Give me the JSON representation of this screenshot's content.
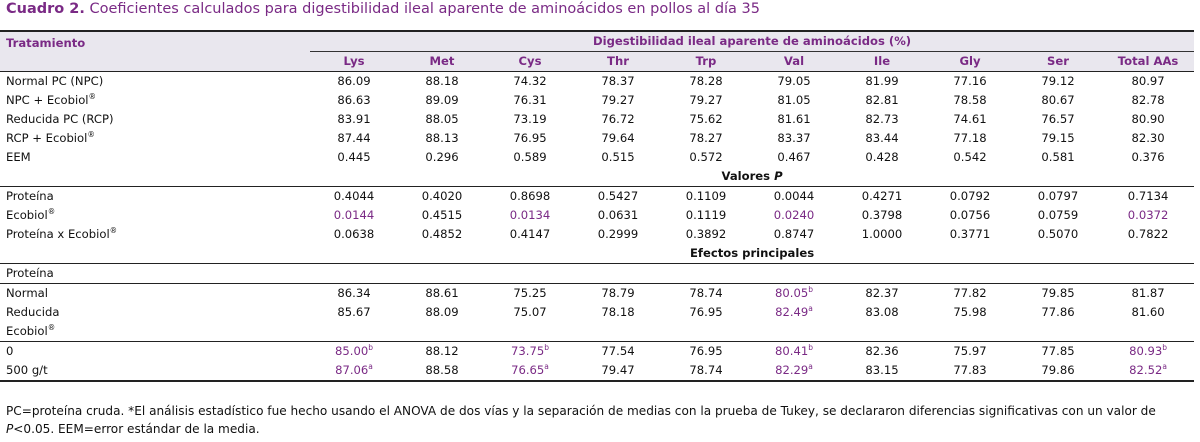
{
  "caption": {
    "label": "Cuadro 2.",
    "text": "Coeficientes calculados para digestibilidad ileal aparente de aminoácidos en pollos al día 35"
  },
  "header": {
    "treatment": "Tratamiento",
    "group": "Digestibilidad ileal aparente de aminoácidos (%)",
    "columns": [
      "Lys",
      "Met",
      "Cys",
      "Thr",
      "Trp",
      "Val",
      "Ile",
      "Gly",
      "Ser",
      "Total AAs"
    ]
  },
  "treatments": [
    {
      "label": "Normal PC (NPC)",
      "values": [
        "86.09",
        "88.18",
        "74.32",
        "78.37",
        "78.28",
        "79.05",
        "81.99",
        "77.16",
        "79.12",
        "80.97"
      ]
    },
    {
      "label": "NPC + Ecobiol",
      "sup": "®",
      "values": [
        "86.63",
        "89.09",
        "76.31",
        "79.27",
        "79.27",
        "81.05",
        "82.81",
        "78.58",
        "80.67",
        "82.78"
      ]
    },
    {
      "label": "Reducida PC (RCP)",
      "values": [
        "83.91",
        "88.05",
        "73.19",
        "76.72",
        "75.62",
        "81.61",
        "82.73",
        "74.61",
        "76.57",
        "80.90"
      ]
    },
    {
      "label": "RCP + Ecobiol",
      "sup": "®",
      "values": [
        "87.44",
        "88.13",
        "76.95",
        "79.64",
        "78.27",
        "83.37",
        "83.44",
        "77.18",
        "79.15",
        "82.30"
      ]
    },
    {
      "label": "EEM",
      "values": [
        "0.445",
        "0.296",
        "0.589",
        "0.515",
        "0.572",
        "0.467",
        "0.428",
        "0.542",
        "0.581",
        "0.376"
      ]
    }
  ],
  "pvalues": {
    "title": "Valores ",
    "title_italic": "P",
    "rows": [
      {
        "label": "Proteína",
        "values": [
          "0.4044",
          "0.4020",
          "0.8698",
          "0.5427",
          "0.1109",
          "0.0044",
          "0.4271",
          "0.0792",
          "0.0797",
          "0.7134"
        ],
        "sig": []
      },
      {
        "label": "Ecobiol",
        "sup": "®",
        "values": [
          "0.0144",
          "0.4515",
          "0.0134",
          "0.0631",
          "0.1119",
          "0.0240",
          "0.3798",
          "0.0756",
          "0.0759",
          "0.0372"
        ],
        "sig": [
          0,
          2,
          5,
          9
        ]
      },
      {
        "label": "Proteína x Ecobiol",
        "sup": "®",
        "values": [
          "0.0638",
          "0.4852",
          "0.4147",
          "0.2999",
          "0.3892",
          "0.8747",
          "1.0000",
          "0.3771",
          "0.5070",
          "0.7822"
        ],
        "sig": []
      }
    ]
  },
  "main_effects": {
    "title": "Efectos principales",
    "protein": {
      "label": "Proteína",
      "rows": [
        {
          "label": "Normal",
          "values": [
            "86.34",
            "88.61",
            "75.25",
            "78.79",
            "78.74",
            "80.05",
            "82.37",
            "77.82",
            "79.85",
            "81.87"
          ],
          "sig": {
            "5": "b"
          }
        },
        {
          "label": "Reducida",
          "values": [
            "85.67",
            "88.09",
            "75.07",
            "78.18",
            "76.95",
            "82.49",
            "83.08",
            "75.98",
            "77.86",
            "81.60"
          ],
          "sig": {
            "5": "a"
          }
        }
      ]
    },
    "ecobiol": {
      "label": "Ecobiol",
      "sup": "®",
      "rows": [
        {
          "label": "0",
          "values": [
            "85.00",
            "88.12",
            "73.75",
            "77.54",
            "76.95",
            "80.41",
            "82.36",
            "75.97",
            "77.85",
            "80.93"
          ],
          "sig": {
            "0": "b",
            "2": "b",
            "5": "b",
            "9": "b"
          }
        },
        {
          "label": "500 g/t",
          "values": [
            "87.06",
            "88.58",
            "76.65",
            "79.47",
            "78.74",
            "82.29",
            "83.15",
            "77.83",
            "79.86",
            "82.52"
          ],
          "sig": {
            "0": "a",
            "2": "a",
            "5": "a",
            "9": "a"
          }
        }
      ]
    }
  },
  "footnote": {
    "line1": "PC=proteína cruda. *El análisis estadístico fue hecho usando el ANOVA de dos vías y la separación de medias con la prueba de Tukey, se declararon diferencias significativas con un valor de",
    "line2_italic": "P",
    "line2": "<0.05. EEM=error estándar de la media."
  },
  "colors": {
    "accent": "#7a2a85",
    "header_bg": "#e9e7ee"
  }
}
